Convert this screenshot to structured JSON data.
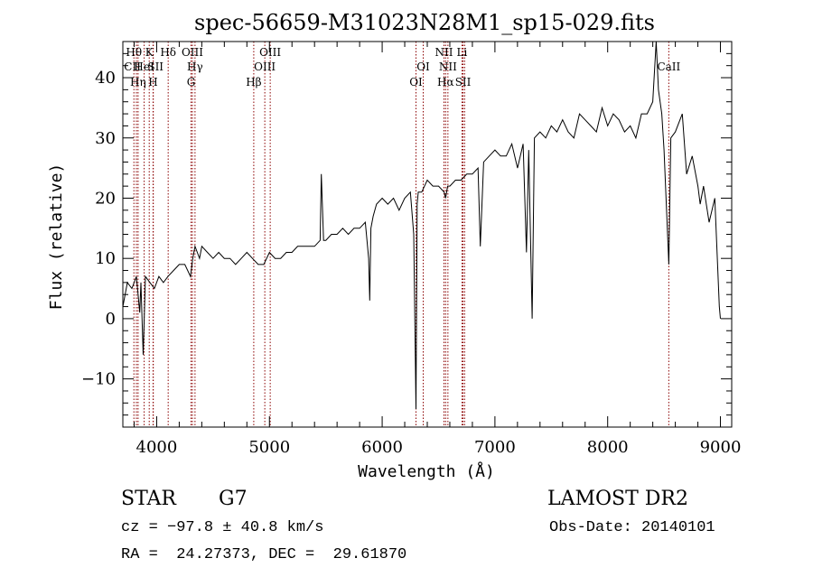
{
  "title": "spec-56659-M31023N28M1_sp15-029.fits",
  "footer": {
    "class": "STAR",
    "subclass": "G7",
    "survey": "LAMOST DR2",
    "cz": "cz = −97.8 ± 40.8 km/s",
    "obs_date": "Obs-Date: 20140101",
    "radec": "RA =  24.27373, DEC =  29.61870"
  },
  "chart_data": {
    "type": "line",
    "title": "spec-56659-M31023N28M1_sp15-029.fits",
    "xlabel": "Wavelength (Å)",
    "ylabel": "Flux (relative)",
    "xlim": [
      3700,
      9100
    ],
    "ylim": [
      -18,
      46
    ],
    "xticks": [
      4000,
      5000,
      6000,
      7000,
      8000,
      9000
    ],
    "xtick_labels": [
      "4000",
      "5000",
      "6000",
      "7000",
      "8000",
      "9000"
    ],
    "yticks": [
      -10,
      0,
      10,
      20,
      30,
      40
    ],
    "ytick_labels": [
      "−10",
      "0",
      "10",
      "20",
      "30",
      "40"
    ],
    "grid": false,
    "line_color": "#000000",
    "marker_color": "#8b0000",
    "series": [
      {
        "x": [
          3700,
          3740,
          3780,
          3820,
          3850,
          3860,
          3880,
          3900,
          3940,
          3980,
          4020,
          4060,
          4100,
          4150,
          4200,
          4250,
          4300,
          4320,
          4340,
          4360,
          4380,
          4400,
          4450,
          4500,
          4550,
          4600,
          4650,
          4700,
          4750,
          4800,
          4850,
          4900,
          4950,
          5000,
          5050,
          5100,
          5150,
          5200,
          5250,
          5300,
          5350,
          5400,
          5450,
          5460,
          5480,
          5500,
          5550,
          5600,
          5650,
          5700,
          5750,
          5800,
          5850,
          5880,
          5890,
          5900,
          5920,
          5950,
          6000,
          6050,
          6100,
          6150,
          6200,
          6250,
          6280,
          6300,
          6310,
          6320,
          6350,
          6400,
          6450,
          6500,
          6550,
          6563,
          6580,
          6600,
          6650,
          6700,
          6750,
          6800,
          6850,
          6870,
          6900,
          6950,
          7000,
          7050,
          7100,
          7150,
          7200,
          7250,
          7280,
          7300,
          7330,
          7350,
          7400,
          7450,
          7500,
          7550,
          7600,
          7650,
          7700,
          7750,
          7800,
          7850,
          7900,
          7950,
          8000,
          8050,
          8100,
          8150,
          8200,
          8250,
          8300,
          8350,
          8400,
          8430,
          8450,
          8480,
          8500,
          8542,
          8560,
          8600,
          8662,
          8700,
          8750,
          8800,
          8820,
          8850,
          8900,
          8950,
          8990,
          9000
        ],
        "y": [
          2,
          6,
          5,
          7,
          1,
          6,
          -6,
          7,
          6,
          5,
          7,
          6,
          7,
          8,
          9,
          9,
          7,
          10,
          12,
          11,
          10,
          12,
          11,
          10,
          11,
          10,
          10,
          9,
          10,
          11,
          10,
          9,
          9,
          11,
          10,
          10,
          11,
          11,
          12,
          12,
          12,
          12,
          13,
          24,
          13,
          13,
          14,
          14,
          15,
          14,
          15,
          15,
          16,
          10,
          3,
          15,
          17,
          19,
          20,
          19,
          20,
          18,
          20,
          21,
          14,
          -15,
          19,
          21,
          21,
          23,
          22,
          22,
          21,
          20,
          22,
          22,
          23,
          23,
          24,
          24,
          25,
          12,
          26,
          27,
          28,
          27,
          27,
          29,
          25,
          29,
          11,
          28,
          0,
          30,
          31,
          30,
          32,
          31,
          33,
          31,
          30,
          34,
          33,
          32,
          31,
          35,
          32,
          34,
          33,
          31,
          32,
          30,
          34,
          34,
          36,
          46,
          38,
          34,
          28,
          9,
          30,
          31,
          34,
          24,
          27,
          22,
          19,
          22,
          16,
          20,
          2,
          0
        ]
      }
    ],
    "lines": [
      {
        "name": "Hθ",
        "wl": 3798
      },
      {
        "name": "CII",
        "wl": 3820
      },
      {
        "name": "Hη",
        "wl": 3835
      },
      {
        "name": "HeI",
        "wl": 3889
      },
      {
        "name": "K",
        "wl": 3934
      },
      {
        "name": "SII",
        "wl": 3970
      },
      {
        "name": "H",
        "wl": 3968
      },
      {
        "name": "Hδ",
        "wl": 4102
      },
      {
        "name": "OIII",
        "wl": 4317
      },
      {
        "name": "Hγ",
        "wl": 4340
      },
      {
        "name": "G",
        "wl": 4305
      },
      {
        "name": "Hβ",
        "wl": 4861
      },
      {
        "name": "OIII",
        "wl": 4959
      },
      {
        "name": "OIII",
        "wl": 5007
      },
      {
        "name": "OI",
        "wl": 6300
      },
      {
        "name": "OI",
        "wl": 6364
      },
      {
        "name": "NII",
        "wl": 6548
      },
      {
        "name": "Hα",
        "wl": 6563
      },
      {
        "name": "NII",
        "wl": 6583
      },
      {
        "name": "Li",
        "wl": 6708
      },
      {
        "name": "SII",
        "wl": 6717
      },
      {
        "name": "SII",
        "wl": 6731
      },
      {
        "name": "CaII",
        "wl": 8542
      }
    ],
    "line_labels": [
      {
        "text": "Hθ",
        "wl": 3798,
        "row": 1
      },
      {
        "text": "K",
        "wl": 3934,
        "row": 1
      },
      {
        "text": "Hδ",
        "wl": 4102,
        "row": 1
      },
      {
        "text": "OIII",
        "wl": 4317,
        "row": 1
      },
      {
        "text": "OIII",
        "wl": 5007,
        "row": 1
      },
      {
        "text": "NII",
        "wl": 6548,
        "row": 1
      },
      {
        "text": "Li",
        "wl": 6708,
        "row": 1
      },
      {
        "text": "CII",
        "wl": 3785,
        "row": 2
      },
      {
        "text": "HeI",
        "wl": 3889,
        "row": 2
      },
      {
        "text": "SII",
        "wl": 3990,
        "row": 2
      },
      {
        "text": "Hγ",
        "wl": 4340,
        "row": 2
      },
      {
        "text": "OIII",
        "wl": 4959,
        "row": 2
      },
      {
        "text": "OI",
        "wl": 6364,
        "row": 2
      },
      {
        "text": "NII",
        "wl": 6583,
        "row": 2
      },
      {
        "text": "CaII",
        "wl": 8542,
        "row": 2
      },
      {
        "text": "Hη",
        "wl": 3835,
        "row": 3
      },
      {
        "text": "H",
        "wl": 3968,
        "row": 3
      },
      {
        "text": "G",
        "wl": 4305,
        "row": 3
      },
      {
        "text": "Hβ",
        "wl": 4861,
        "row": 3
      },
      {
        "text": "OI",
        "wl": 6300,
        "row": 3
      },
      {
        "text": "Hα",
        "wl": 6563,
        "row": 3
      },
      {
        "text": "SII",
        "wl": 6717,
        "row": 3
      }
    ]
  }
}
